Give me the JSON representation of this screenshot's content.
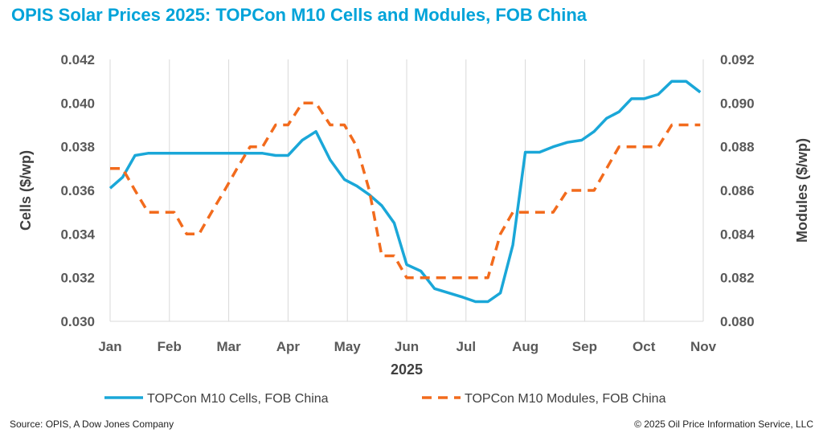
{
  "title": "OPIS Solar Prices 2025: TOPCon M10 Cells and Modules, FOB China",
  "footer": {
    "source": "Source: OPIS, A Dow Jones Company",
    "copyright": "© 2025 Oil Price Information Service, LLC"
  },
  "colors": {
    "cells": "#1aa7d8",
    "modules": "#f26b1d",
    "grid": "#d9d9d9",
    "title": "#00a3d9"
  },
  "chart_data": {
    "type": "line",
    "xlabel": "2025",
    "x_ticks": [
      "Jan",
      "Feb",
      "Mar",
      "Apr",
      "May",
      "Jun",
      "Jul",
      "Aug",
      "Sep",
      "Oct",
      "Nov"
    ],
    "xlim": [
      0,
      10
    ],
    "ylabel_left": "Cells ($/wp)",
    "ylabel_right": "Modules ($/wp)",
    "ylim_left": [
      0.03,
      0.042
    ],
    "ylim_right": [
      0.08,
      0.092
    ],
    "yticks_left": [
      "0.030",
      "0.032",
      "0.034",
      "0.036",
      "0.038",
      "0.040",
      "0.042"
    ],
    "yticks_right": [
      "0.080",
      "0.082",
      "0.084",
      "0.086",
      "0.088",
      "0.090",
      "0.092"
    ],
    "grid": "vertical",
    "legend_position": "bottom",
    "series": [
      {
        "name": "TOPCon M10 Cells, FOB China",
        "axis": "left",
        "style": "solid",
        "points": [
          [
            0.0,
            0.0361
          ],
          [
            0.21,
            0.0366
          ],
          [
            0.42,
            0.0376
          ],
          [
            0.64,
            0.0377
          ],
          [
            0.86,
            0.0377
          ],
          [
            1.08,
            0.0377
          ],
          [
            1.29,
            0.0377
          ],
          [
            1.5,
            0.0377
          ],
          [
            1.71,
            0.0377
          ],
          [
            1.93,
            0.0377
          ],
          [
            2.14,
            0.0377
          ],
          [
            2.36,
            0.0377
          ],
          [
            2.57,
            0.0377
          ],
          [
            2.79,
            0.0376
          ],
          [
            3.0,
            0.0376
          ],
          [
            3.24,
            0.0383
          ],
          [
            3.47,
            0.0387
          ],
          [
            3.71,
            0.0374
          ],
          [
            3.95,
            0.0365
          ],
          [
            4.16,
            0.0362
          ],
          [
            4.37,
            0.0358
          ],
          [
            4.58,
            0.0353
          ],
          [
            4.79,
            0.0345
          ],
          [
            5.0,
            0.0326
          ],
          [
            5.24,
            0.0323
          ],
          [
            5.47,
            0.0315
          ],
          [
            5.71,
            0.0313
          ],
          [
            5.95,
            0.0311
          ],
          [
            6.16,
            0.0309
          ],
          [
            6.37,
            0.0309
          ],
          [
            6.58,
            0.0313
          ],
          [
            6.79,
            0.0335
          ],
          [
            7.0,
            0.03775
          ],
          [
            7.24,
            0.03775
          ],
          [
            7.47,
            0.038
          ],
          [
            7.71,
            0.0382
          ],
          [
            7.95,
            0.0383
          ],
          [
            8.16,
            0.0387
          ],
          [
            8.37,
            0.0393
          ],
          [
            8.58,
            0.0396
          ],
          [
            8.79,
            0.0402
          ],
          [
            9.0,
            0.0402
          ],
          [
            9.24,
            0.0404
          ],
          [
            9.47,
            0.041
          ],
          [
            9.71,
            0.041
          ],
          [
            9.95,
            0.0405
          ]
        ]
      },
      {
        "name": "TOPCon M10 Modules, FOB China",
        "axis": "right",
        "style": "dashed",
        "points": [
          [
            0.0,
            0.087
          ],
          [
            0.21,
            0.087
          ],
          [
            0.42,
            0.086
          ],
          [
            0.64,
            0.085
          ],
          [
            0.86,
            0.085
          ],
          [
            1.08,
            0.085
          ],
          [
            1.29,
            0.084
          ],
          [
            1.5,
            0.084
          ],
          [
            1.71,
            0.085
          ],
          [
            1.93,
            0.086
          ],
          [
            2.14,
            0.087
          ],
          [
            2.36,
            0.088
          ],
          [
            2.57,
            0.088
          ],
          [
            2.79,
            0.089
          ],
          [
            3.0,
            0.089
          ],
          [
            3.24,
            0.09
          ],
          [
            3.47,
            0.09
          ],
          [
            3.71,
            0.089
          ],
          [
            3.95,
            0.089
          ],
          [
            4.16,
            0.088
          ],
          [
            4.37,
            0.086
          ],
          [
            4.58,
            0.083
          ],
          [
            4.79,
            0.083
          ],
          [
            5.0,
            0.082
          ],
          [
            5.24,
            0.082
          ],
          [
            5.47,
            0.082
          ],
          [
            5.71,
            0.082
          ],
          [
            5.95,
            0.082
          ],
          [
            6.16,
            0.082
          ],
          [
            6.37,
            0.082
          ],
          [
            6.58,
            0.084
          ],
          [
            6.79,
            0.085
          ],
          [
            7.0,
            0.085
          ],
          [
            7.24,
            0.085
          ],
          [
            7.47,
            0.085
          ],
          [
            7.71,
            0.086
          ],
          [
            7.95,
            0.086
          ],
          [
            8.16,
            0.086
          ],
          [
            8.37,
            0.087
          ],
          [
            8.58,
            0.088
          ],
          [
            8.79,
            0.088
          ],
          [
            9.0,
            0.088
          ],
          [
            9.24,
            0.088
          ],
          [
            9.47,
            0.089
          ],
          [
            9.71,
            0.089
          ],
          [
            9.95,
            0.089
          ]
        ]
      }
    ]
  }
}
